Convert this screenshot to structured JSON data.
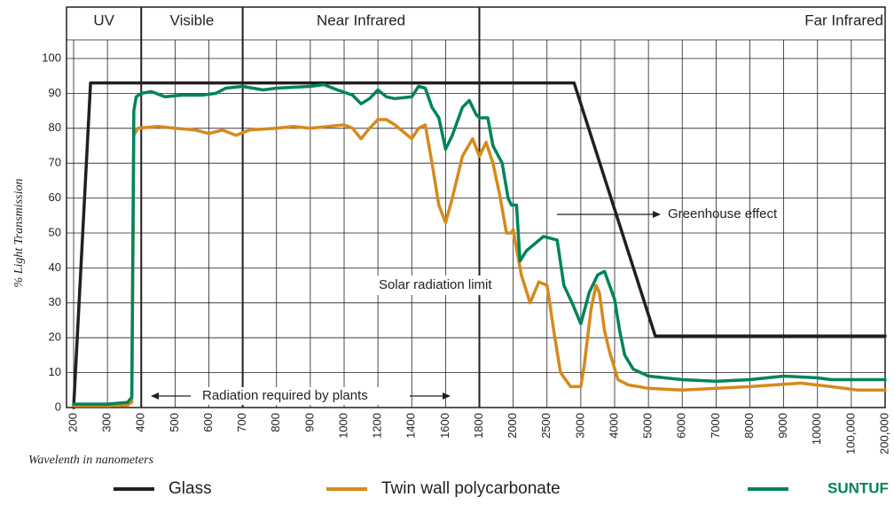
{
  "chart_data": {
    "type": "line",
    "bands": [
      "UV",
      "Visible",
      "Near Infrared",
      "Far Infrared"
    ],
    "band_boundaries": [
      400,
      700,
      1800
    ],
    "y_label": "% Light Transmission",
    "x_label": "Wavelenth in nanometers",
    "annotations": [
      "Greenhouse effect",
      "Solar radiation limit",
      "Radiation required by plants"
    ],
    "xticks": [
      200,
      300,
      400,
      500,
      600,
      700,
      800,
      900,
      1000,
      1200,
      1400,
      1600,
      1800,
      2000,
      2500,
      3000,
      4000,
      5000,
      6000,
      7000,
      8000,
      9000,
      10000,
      {
        "value": 100000,
        "label": "100,000"
      },
      {
        "value": 200000,
        "label": "200,000"
      }
    ],
    "ylim": [
      0,
      100
    ],
    "yticks": [
      0,
      10,
      20,
      30,
      40,
      50,
      60,
      70,
      80,
      90,
      100
    ],
    "grid": true,
    "series": [
      {
        "name": "Glass",
        "color": "#231f20",
        "x": [
          200,
          250,
          2900,
          5200,
          200000
        ],
        "values": [
          0,
          93,
          93,
          20.5,
          20.5
        ]
      },
      {
        "name": "Twin wall polycarbonate",
        "color": "#d68a1c",
        "x": [
          200,
          300,
          360,
          372,
          378,
          390,
          450,
          500,
          560,
          600,
          640,
          680,
          720,
          800,
          850,
          900,
          1000,
          1050,
          1100,
          1150,
          1200,
          1250,
          1300,
          1400,
          1440,
          1480,
          1520,
          1560,
          1600,
          1640,
          1700,
          1760,
          1800,
          1840,
          1880,
          1920,
          1960,
          1990,
          2000,
          2120,
          2250,
          2380,
          2500,
          2600,
          2700,
          2850,
          3000,
          3100,
          3300,
          3450,
          3550,
          3700,
          3850,
          4100,
          4400,
          5000,
          6000,
          8000,
          9500,
          46000,
          120000,
          200000
        ],
        "values": [
          0.5,
          0.5,
          0.7,
          1.5,
          78,
          80,
          80.5,
          80,
          79.5,
          78.5,
          79.5,
          78,
          79.5,
          80,
          80.5,
          80,
          81,
          80,
          77,
          80,
          82.5,
          82.5,
          81,
          77,
          80,
          81,
          70,
          58,
          53,
          60,
          72,
          77,
          72,
          76,
          70,
          61,
          50,
          50,
          51,
          38,
          30,
          36,
          35,
          22,
          10,
          6,
          6,
          12,
          28,
          35,
          33,
          22,
          16,
          8,
          6.5,
          5.5,
          5,
          6,
          7,
          6,
          5,
          5
        ]
      },
      {
        "name": "SUNTUF",
        "color": "#00845a",
        "x": [
          200,
          300,
          360,
          372,
          378,
          385,
          400,
          430,
          470,
          520,
          580,
          620,
          650,
          700,
          760,
          800,
          900,
          940,
          980,
          1050,
          1100,
          1150,
          1200,
          1250,
          1300,
          1400,
          1440,
          1480,
          1520,
          1560,
          1600,
          1640,
          1700,
          1740,
          1780,
          1800,
          1850,
          1880,
          1935,
          1970,
          1990,
          2050,
          2100,
          2200,
          2450,
          2650,
          2750,
          2870,
          3000,
          3250,
          3500,
          3700,
          3850,
          4000,
          4150,
          4300,
          4550,
          5000,
          6000,
          7000,
          8000,
          9000,
          10000,
          46000,
          150000,
          200000
        ],
        "values": [
          1,
          1,
          1.5,
          3,
          85,
          89,
          90,
          90.5,
          89,
          89.5,
          89.5,
          90,
          91.5,
          92,
          91,
          91.5,
          92,
          92.5,
          91,
          89.5,
          87,
          88.5,
          91,
          89,
          88.5,
          89,
          92,
          91.5,
          86,
          83,
          74,
          78,
          86,
          88,
          84,
          83,
          83,
          75,
          70,
          60,
          58,
          58,
          42,
          45,
          49,
          48,
          35,
          30,
          24,
          33,
          38,
          39,
          35,
          31,
          22,
          15,
          11,
          9,
          8,
          7.5,
          8,
          9,
          8.5,
          8,
          8,
          8
        ]
      }
    ]
  }
}
